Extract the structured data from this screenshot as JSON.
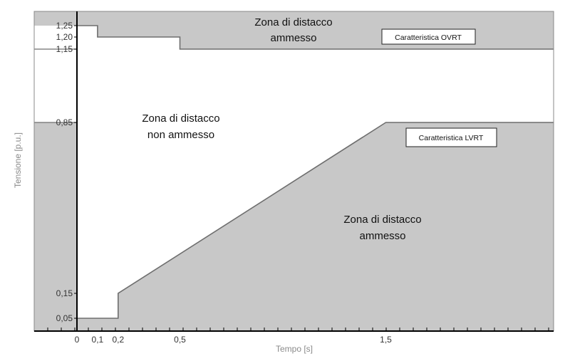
{
  "chart_data": {
    "type": "area",
    "xlabel": "Tempo  [s]",
    "ylabel": "Tensione [p.u.]",
    "xlim": [
      0,
      2.0
    ],
    "ylim": [
      0,
      1.28
    ],
    "x_ticks": [
      "0",
      "0,1",
      "0,2",
      "0,5",
      "1,5"
    ],
    "x_tick_values": [
      0,
      0.1,
      0.2,
      0.5,
      1.5
    ],
    "y_ticks": [
      "0,05",
      "0,15",
      "0,85",
      "1,15",
      "1,20",
      "1,25"
    ],
    "y_tick_values": [
      0.05,
      0.15,
      0.85,
      1.15,
      1.2,
      1.25
    ],
    "series": [
      {
        "name": "Caratteristica OVRT",
        "x": [
          0,
          0.1,
          0.1,
          0.5,
          0.5,
          2.0
        ],
        "y": [
          1.25,
          1.25,
          1.2,
          1.2,
          1.15,
          1.15
        ]
      },
      {
        "name": "Caratteristica LVRT",
        "x": [
          0,
          0.2,
          0.2,
          1.5,
          2.0
        ],
        "y": [
          0.05,
          0.05,
          0.15,
          0.85,
          0.85
        ]
      }
    ],
    "annotations": {
      "zone_top": [
        "Zona di distacco",
        "ammesso"
      ],
      "zone_middle": [
        "Zona di distacco",
        "non ammesso"
      ],
      "zone_bottom": [
        "Zona di distacco",
        "ammesso"
      ]
    },
    "grid": false,
    "colors": {
      "zone_fill": "#c8c8c8",
      "line": "#6e6e6e",
      "axis": "#000000",
      "label_box_border": "#222222"
    }
  }
}
